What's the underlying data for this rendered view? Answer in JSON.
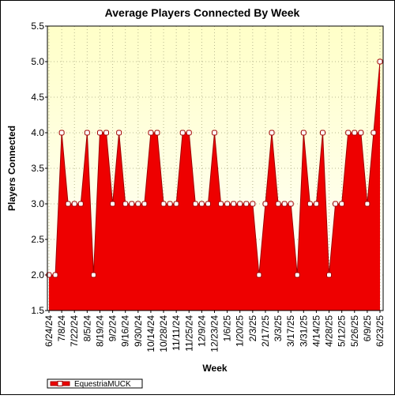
{
  "chart_data": {
    "type": "area",
    "title": "Average Players Connected By Week",
    "x_label": "Week",
    "y_label": "Players Connected",
    "categories": [
      "6/24/24",
      null,
      "7/8/24",
      null,
      "7/22/24",
      null,
      "8/5/24",
      null,
      "8/19/24",
      null,
      "9/2/24",
      null,
      "9/16/24",
      null,
      "9/30/24",
      null,
      "10/14/24",
      null,
      "10/28/24",
      null,
      "11/11/24",
      null,
      "11/25/24",
      null,
      "12/9/24",
      null,
      "12/23/24",
      null,
      "1/6/25",
      null,
      "1/20/25",
      null,
      "2/3/25",
      null,
      "2/17/25",
      null,
      "3/3/25",
      null,
      "3/17/25",
      null,
      "3/31/25",
      null,
      "4/14/25",
      null,
      "4/28/25",
      null,
      "5/12/25",
      null,
      "5/26/25",
      null,
      "6/9/25",
      null,
      "6/23/25"
    ],
    "series": [
      {
        "name": "EquestriaMUCK",
        "color": "#ee0000",
        "values": [
          2,
          2,
          4,
          3,
          3,
          3,
          4,
          2,
          4,
          4,
          3,
          4,
          3,
          3,
          3,
          3,
          4,
          4,
          3,
          3,
          3,
          4,
          4,
          3,
          3,
          3,
          4,
          3,
          3,
          3,
          3,
          3,
          3,
          2,
          3,
          4,
          3,
          3,
          3,
          2,
          4,
          3,
          3,
          4,
          2,
          3,
          3,
          4,
          4,
          4,
          3,
          4,
          5
        ]
      }
    ],
    "ylim": [
      1.5,
      5.5
    ],
    "yticks": [
      1.5,
      {
        "value": 2,
        "label": "2.0"
      },
      2.5,
      {
        "value": 3,
        "label": "3.0"
      },
      3.5,
      {
        "value": 4,
        "label": "4.0"
      },
      4.5,
      {
        "value": 5,
        "label": "5.0"
      },
      5.5
    ],
    "grid": true,
    "legend": "bottom-left"
  }
}
